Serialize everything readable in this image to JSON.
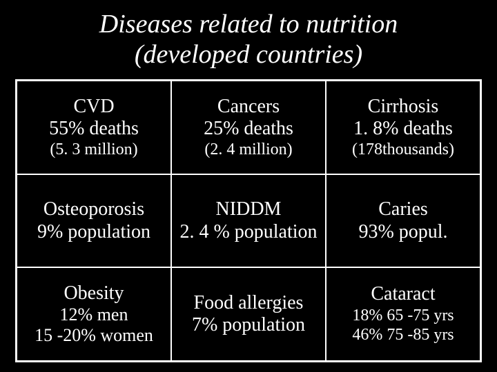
{
  "slide": {
    "title_line1": "Diseases related to nutrition",
    "title_line2": "(developed countries)",
    "background_color": "#000000",
    "text_color": "#ffffff",
    "title_fontsize": 38,
    "title_style": "italic",
    "grid": {
      "rows": 3,
      "cols": 3,
      "border_color": "#ffffff",
      "cell_fontsize_main": 28,
      "cell_fontsize_note": 24,
      "cells": [
        [
          {
            "name": "CVD",
            "stat": "55% deaths",
            "note": "(5. 3 million)"
          },
          {
            "name": "Cancers",
            "stat": "25% deaths",
            "note": "(2. 4 million)"
          },
          {
            "name": "Cirrhosis",
            "stat": "1. 8% deaths",
            "note": "(178thousands)"
          }
        ],
        [
          {
            "name": "Osteoporosis",
            "stat": "9% population",
            "note": ""
          },
          {
            "name": "NIDDM",
            "stat": "2. 4 % population",
            "note": ""
          },
          {
            "name": "Caries",
            "stat": "93% popul.",
            "note": ""
          }
        ],
        [
          {
            "name": "Obesity",
            "stat": "12% men",
            "note": "15 -20% women"
          },
          {
            "name": "Food allergies",
            "stat": "7% population",
            "note": ""
          },
          {
            "name": "Cataract",
            "stat": "18%  65 -75 yrs",
            "note": "46%  75 -85 yrs"
          }
        ]
      ]
    }
  }
}
